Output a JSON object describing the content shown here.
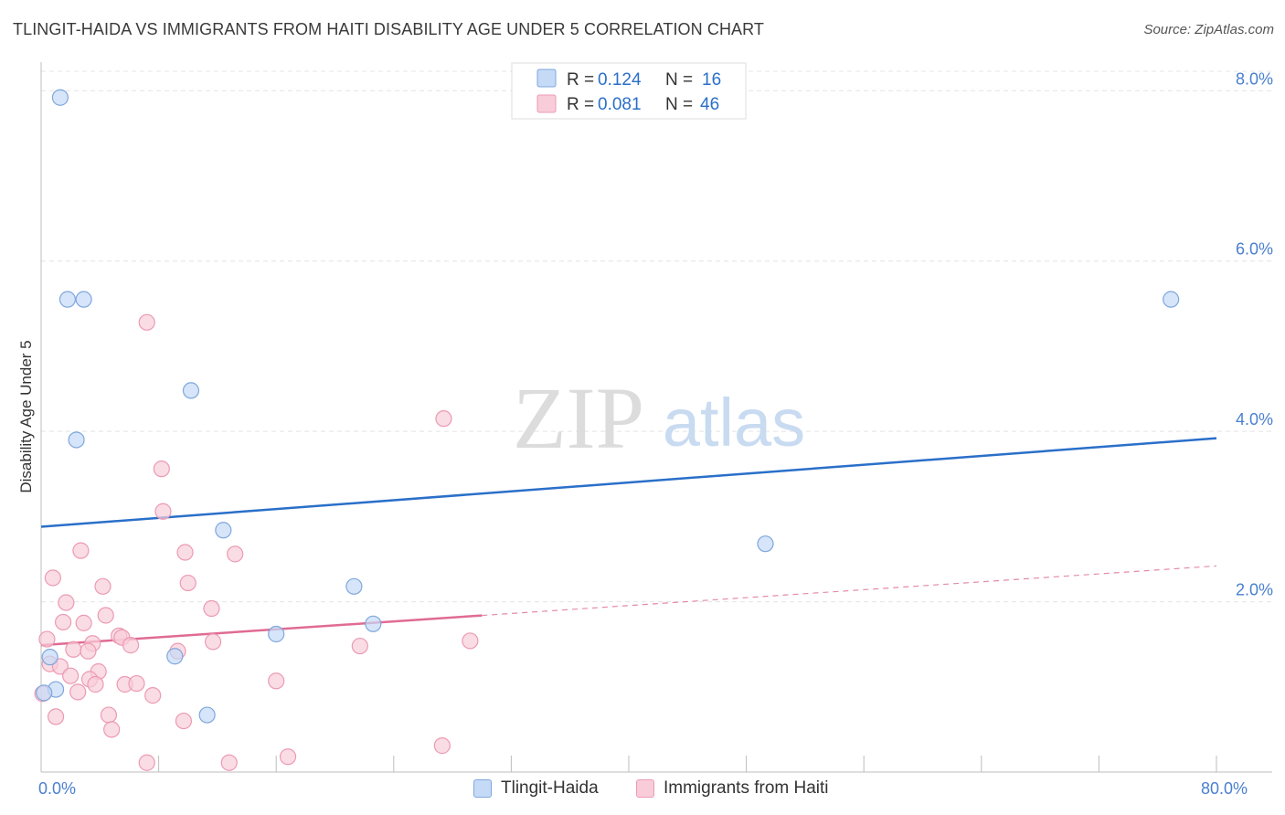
{
  "title": "TLINGIT-HAIDA VS IMMIGRANTS FROM HAITI DISABILITY AGE UNDER 5 CORRELATION CHART",
  "source": "Source: ZipAtlas.com",
  "watermark": {
    "zip": "ZIP",
    "atlas": "atlas"
  },
  "colors": {
    "tlingit_fill": "#c5daf6",
    "tlingit_stroke": "#7fa7dd",
    "tlingit_line": "#2a6fc9",
    "haiti_fill": "#f8cdd9",
    "haiti_stroke": "#ec9ab3",
    "haiti_line": "#e06b94",
    "grid": "#e4e4e4",
    "tick_label": "#4a7fd0"
  },
  "legend_top": {
    "rows": [
      {
        "r_label": "R =",
        "r_value": "0.124",
        "n_label": "N =",
        "n_value": "16"
      },
      {
        "r_label": "R =",
        "r_value": "0.081",
        "n_label": "N =",
        "n_value": "46"
      }
    ]
  },
  "legend_bottom": {
    "items": [
      "Tlingit-Haida",
      "Immigrants from Haiti"
    ]
  },
  "chart_data": {
    "type": "scatter",
    "title": "TLINGIT-HAIDA VS IMMIGRANTS FROM HAITI DISABILITY AGE UNDER 5 CORRELATION CHART",
    "xlabel": "",
    "ylabel": "Disability Age Under 5",
    "xlim": [
      0,
      80
    ],
    "ylim": [
      0,
      8.4
    ],
    "x_tick_labels": [
      {
        "value": 0,
        "label": "0.0%"
      },
      {
        "value": 80,
        "label": "80.0%"
      }
    ],
    "y_tick_labels": [
      {
        "value": 2,
        "label": "2.0%"
      },
      {
        "value": 4,
        "label": "4.0%"
      },
      {
        "value": 6,
        "label": "6.0%"
      },
      {
        "value": 8,
        "label": "8.0%"
      }
    ],
    "x_minor_ticks": [
      8,
      16,
      24,
      32,
      40,
      48,
      56,
      64,
      72,
      80
    ],
    "grid": true,
    "series": [
      {
        "name": "Tlingit-Haida",
        "r": 0.124,
        "n": 16,
        "trend": {
          "x0": 0,
          "y0": 2.88,
          "x1": 80,
          "y1": 3.92,
          "dash_from": null
        },
        "points": [
          {
            "x": 1.3,
            "y": 7.92
          },
          {
            "x": 1.8,
            "y": 5.55
          },
          {
            "x": 2.9,
            "y": 5.55
          },
          {
            "x": 10.2,
            "y": 4.48
          },
          {
            "x": 2.4,
            "y": 3.9
          },
          {
            "x": 12.4,
            "y": 2.84
          },
          {
            "x": 21.3,
            "y": 2.18
          },
          {
            "x": 22.6,
            "y": 1.74
          },
          {
            "x": 16.0,
            "y": 1.62
          },
          {
            "x": 9.1,
            "y": 1.36
          },
          {
            "x": 0.6,
            "y": 1.35
          },
          {
            "x": 1.0,
            "y": 0.97
          },
          {
            "x": 0.2,
            "y": 0.93
          },
          {
            "x": 11.3,
            "y": 0.67
          },
          {
            "x": 49.3,
            "y": 2.68
          },
          {
            "x": 76.9,
            "y": 5.55
          }
        ]
      },
      {
        "name": "Immigrants from Haiti",
        "r": 0.081,
        "n": 46,
        "trend": {
          "x0": 0,
          "y0": 1.49,
          "x1": 80,
          "y1": 2.42,
          "dash_from": 30
        },
        "points": [
          {
            "x": 7.2,
            "y": 5.28
          },
          {
            "x": 27.4,
            "y": 4.15
          },
          {
            "x": 8.2,
            "y": 3.56
          },
          {
            "x": 8.3,
            "y": 3.06
          },
          {
            "x": 2.7,
            "y": 2.6
          },
          {
            "x": 9.8,
            "y": 2.58
          },
          {
            "x": 13.2,
            "y": 2.56
          },
          {
            "x": 0.8,
            "y": 2.28
          },
          {
            "x": 4.2,
            "y": 2.18
          },
          {
            "x": 10.0,
            "y": 2.22
          },
          {
            "x": 1.7,
            "y": 1.99
          },
          {
            "x": 11.6,
            "y": 1.92
          },
          {
            "x": 4.4,
            "y": 1.84
          },
          {
            "x": 1.5,
            "y": 1.76
          },
          {
            "x": 2.9,
            "y": 1.75
          },
          {
            "x": 5.3,
            "y": 1.6
          },
          {
            "x": 5.5,
            "y": 1.58
          },
          {
            "x": 0.4,
            "y": 1.56
          },
          {
            "x": 11.7,
            "y": 1.53
          },
          {
            "x": 29.2,
            "y": 1.54
          },
          {
            "x": 3.5,
            "y": 1.51
          },
          {
            "x": 6.1,
            "y": 1.49
          },
          {
            "x": 21.7,
            "y": 1.48
          },
          {
            "x": 2.2,
            "y": 1.44
          },
          {
            "x": 3.2,
            "y": 1.42
          },
          {
            "x": 9.3,
            "y": 1.42
          },
          {
            "x": 0.6,
            "y": 1.27
          },
          {
            "x": 1.3,
            "y": 1.24
          },
          {
            "x": 3.9,
            "y": 1.18
          },
          {
            "x": 2.0,
            "y": 1.13
          },
          {
            "x": 3.3,
            "y": 1.09
          },
          {
            "x": 16.0,
            "y": 1.07
          },
          {
            "x": 3.7,
            "y": 1.03
          },
          {
            "x": 5.7,
            "y": 1.03
          },
          {
            "x": 6.5,
            "y": 1.04
          },
          {
            "x": 2.5,
            "y": 0.94
          },
          {
            "x": 7.6,
            "y": 0.9
          },
          {
            "x": 0.1,
            "y": 0.92
          },
          {
            "x": 1.0,
            "y": 0.65
          },
          {
            "x": 4.6,
            "y": 0.67
          },
          {
            "x": 9.7,
            "y": 0.6
          },
          {
            "x": 4.8,
            "y": 0.5
          },
          {
            "x": 27.3,
            "y": 0.31
          },
          {
            "x": 16.8,
            "y": 0.18
          },
          {
            "x": 7.2,
            "y": 0.11
          },
          {
            "x": 12.8,
            "y": 0.11
          }
        ]
      }
    ]
  }
}
